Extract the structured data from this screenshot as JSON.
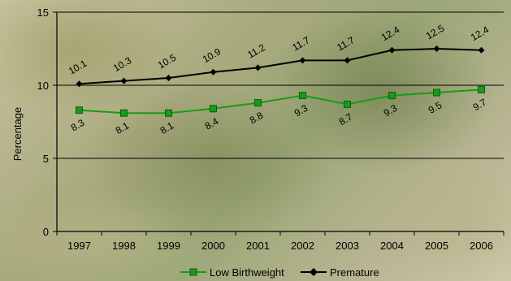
{
  "chart_data": {
    "type": "line",
    "ylabel": "Percentage",
    "xlabel": "",
    "ylim": [
      0,
      15
    ],
    "yticks": [
      0,
      5,
      10,
      15
    ],
    "categories": [
      "1997",
      "1998",
      "1999",
      "2000",
      "2001",
      "2002",
      "2003",
      "2004",
      "2005",
      "2006"
    ],
    "series": [
      {
        "name": "Low Birthweight",
        "color": "#1a9a1a",
        "marker": "square",
        "values": [
          8.3,
          8.1,
          8.1,
          8.4,
          8.8,
          9.3,
          8.7,
          9.3,
          9.5,
          9.7
        ],
        "labels": [
          "8.3",
          "8.1",
          "8.1",
          "8.4",
          "8.8",
          "9.3",
          "8.7",
          "9.3",
          "9.5",
          "9.7"
        ]
      },
      {
        "name": "Premature",
        "color": "#000000",
        "marker": "diamond",
        "values": [
          10.1,
          10.3,
          10.5,
          10.9,
          11.2,
          11.7,
          11.7,
          12.4,
          12.5,
          12.4
        ],
        "labels": [
          "10.1",
          "10.3",
          "10.5",
          "10.9",
          "11.2",
          "11.7",
          "11.7",
          "12.4",
          "12.5",
          "12.4"
        ]
      }
    ],
    "grid": "horizontal",
    "legend_position": "bottom"
  }
}
